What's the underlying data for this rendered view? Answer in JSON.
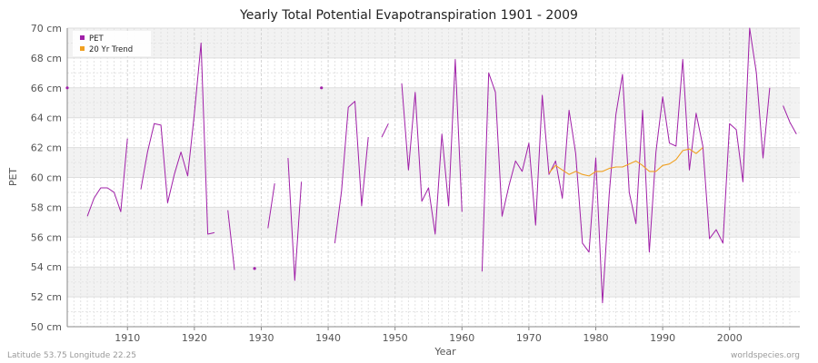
{
  "chart_data": {
    "type": "line",
    "title": "Yearly Total Potential Evapotranspiration 1901 - 2009",
    "xlabel": "Year",
    "ylabel": "PET",
    "xlim": [
      1901,
      2009
    ],
    "ylim": [
      50,
      70
    ],
    "y_ticks": [
      50,
      52,
      54,
      56,
      58,
      60,
      62,
      64,
      66,
      68,
      70
    ],
    "y_tick_labels": [
      "50 cm",
      "52 cm",
      "54 cm",
      "56 cm",
      "58 cm",
      "60 cm",
      "62 cm",
      "64 cm",
      "66 cm",
      "68 cm",
      "70 cm"
    ],
    "x_ticks": [
      1910,
      1920,
      1930,
      1940,
      1950,
      1960,
      1970,
      1980,
      1990,
      2000
    ],
    "x_tick_labels": [
      "1910",
      "1920",
      "1930",
      "1940",
      "1950",
      "1960",
      "1970",
      "1980",
      "1990",
      "2000"
    ],
    "grid": true,
    "legend_position": "top-left",
    "series": [
      {
        "name": "PET",
        "color": "#a020a8",
        "points": [
          [
            1901,
            66.0
          ],
          [
            1904,
            57.4
          ],
          [
            1905,
            58.6
          ],
          [
            1906,
            59.3
          ],
          [
            1907,
            59.3
          ],
          [
            1908,
            59.0
          ],
          [
            1909,
            57.7
          ],
          [
            1910,
            62.6
          ],
          [
            1912,
            59.2
          ],
          [
            1913,
            61.7
          ],
          [
            1914,
            63.6
          ],
          [
            1915,
            63.5
          ],
          [
            1916,
            58.3
          ],
          [
            1917,
            60.2
          ],
          [
            1918,
            61.7
          ],
          [
            1919,
            60.1
          ],
          [
            1920,
            64.3
          ],
          [
            1921,
            69.0
          ],
          [
            1922,
            56.2
          ],
          [
            1923,
            56.3
          ],
          [
            1925,
            57.8
          ],
          [
            1926,
            53.8
          ],
          [
            1929,
            53.9
          ],
          [
            1931,
            56.6
          ],
          [
            1932,
            59.6
          ],
          [
            1934,
            61.3
          ],
          [
            1935,
            53.1
          ],
          [
            1936,
            59.7
          ],
          [
            1939,
            66.0
          ],
          [
            1941,
            55.6
          ],
          [
            1942,
            59.1
          ],
          [
            1943,
            64.7
          ],
          [
            1944,
            65.1
          ],
          [
            1945,
            58.1
          ],
          [
            1946,
            62.7
          ],
          [
            1948,
            62.7
          ],
          [
            1949,
            63.6
          ],
          [
            1951,
            66.3
          ],
          [
            1952,
            60.5
          ],
          [
            1953,
            65.7
          ],
          [
            1954,
            58.4
          ],
          [
            1955,
            59.3
          ],
          [
            1956,
            56.2
          ],
          [
            1957,
            62.9
          ],
          [
            1958,
            58.1
          ],
          [
            1959,
            67.9
          ],
          [
            1960,
            57.7
          ],
          [
            1963,
            53.7
          ],
          [
            1964,
            67.0
          ],
          [
            1965,
            65.7
          ],
          [
            1966,
            57.4
          ],
          [
            1967,
            59.4
          ],
          [
            1968,
            61.1
          ],
          [
            1969,
            60.4
          ],
          [
            1970,
            62.3
          ],
          [
            1971,
            56.8
          ],
          [
            1972,
            65.5
          ],
          [
            1973,
            60.2
          ],
          [
            1974,
            61.1
          ],
          [
            1975,
            58.6
          ],
          [
            1976,
            64.5
          ],
          [
            1977,
            61.6
          ],
          [
            1978,
            55.6
          ],
          [
            1979,
            55.0
          ],
          [
            1980,
            61.3
          ],
          [
            1981,
            51.6
          ],
          [
            1982,
            58.8
          ],
          [
            1983,
            64.2
          ],
          [
            1984,
            66.9
          ],
          [
            1985,
            59.0
          ],
          [
            1986,
            56.9
          ],
          [
            1987,
            64.5
          ],
          [
            1988,
            55.0
          ],
          [
            1989,
            61.7
          ],
          [
            1990,
            65.4
          ],
          [
            1991,
            62.3
          ],
          [
            1992,
            62.1
          ],
          [
            1993,
            67.9
          ],
          [
            1994,
            60.5
          ],
          [
            1995,
            64.3
          ],
          [
            1996,
            62.1
          ],
          [
            1997,
            55.9
          ],
          [
            1998,
            56.5
          ],
          [
            1999,
            55.6
          ],
          [
            2000,
            63.6
          ],
          [
            2001,
            63.2
          ],
          [
            2002,
            59.7
          ],
          [
            2003,
            70.0
          ],
          [
            2004,
            67.0
          ],
          [
            2005,
            61.3
          ],
          [
            2006,
            66.0
          ],
          [
            2008,
            64.8
          ],
          [
            2009,
            63.7
          ],
          [
            2010,
            62.9
          ]
        ]
      },
      {
        "name": "20 Yr Trend",
        "color": "#f0a020",
        "points": [
          [
            1973,
            60.3
          ],
          [
            1974,
            60.8
          ],
          [
            1975,
            60.5
          ],
          [
            1976,
            60.2
          ],
          [
            1977,
            60.4
          ],
          [
            1978,
            60.2
          ],
          [
            1979,
            60.1
          ],
          [
            1980,
            60.4
          ],
          [
            1981,
            60.4
          ],
          [
            1982,
            60.6
          ],
          [
            1983,
            60.7
          ],
          [
            1984,
            60.7
          ],
          [
            1985,
            60.9
          ],
          [
            1986,
            61.1
          ],
          [
            1987,
            60.8
          ],
          [
            1988,
            60.4
          ],
          [
            1989,
            60.4
          ],
          [
            1990,
            60.8
          ],
          [
            1991,
            60.9
          ],
          [
            1992,
            61.2
          ],
          [
            1993,
            61.8
          ],
          [
            1994,
            61.9
          ],
          [
            1995,
            61.6
          ],
          [
            1996,
            62.0
          ]
        ]
      }
    ]
  },
  "footer": {
    "location": "Latitude 53.75 Longitude 22.25",
    "source": "worldspecies.org"
  }
}
